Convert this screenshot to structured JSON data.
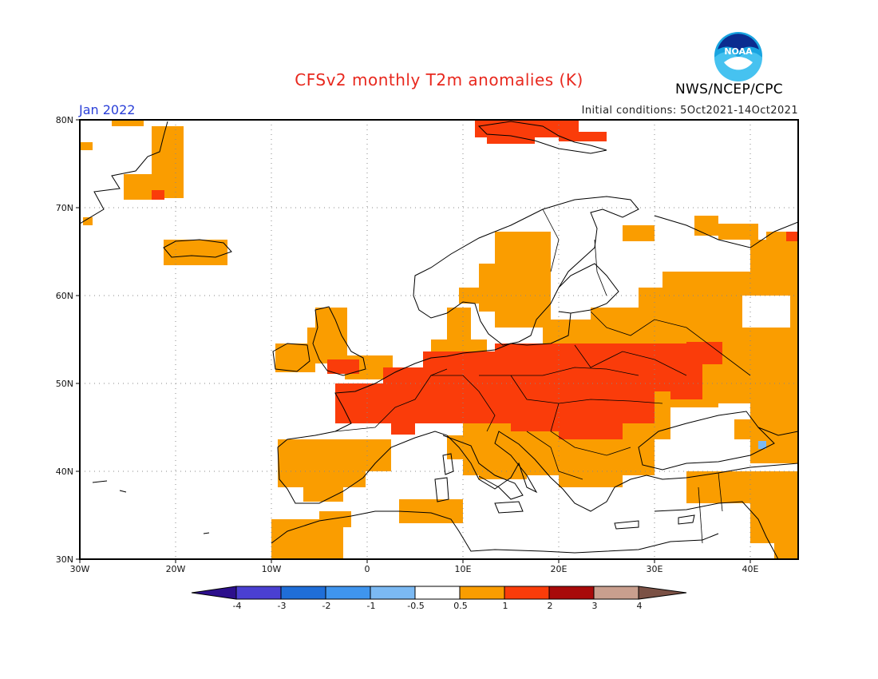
{
  "title": "CFSv2 monthly T2m anomalies (K)",
  "agency": "NWS/NCEP/CPC",
  "logo_text": "NOAA",
  "month": "Jan 2022",
  "initial_conditions": "Initial conditions: 5Oct2021-14Oct2021",
  "lat_labels": [
    "80N",
    "70N",
    "60N",
    "50N",
    "40N",
    "30N"
  ],
  "lon_labels": [
    "30W",
    "20W",
    "10W",
    "0",
    "10E",
    "20E",
    "30E",
    "40E"
  ],
  "colorbar": {
    "labels": [
      "-4",
      "-3",
      "-2",
      "-1",
      "-0.5",
      "0.5",
      "1",
      "2",
      "3",
      "4"
    ],
    "colors": [
      "#2c0f8c",
      "#4a3fd1",
      "#1f6ed8",
      "#3f95ee",
      "#7bb9f3",
      "#ffffff",
      "#fa9d00",
      "#fa3c0a",
      "#a80a0a",
      "#c99f8e",
      "#7b5145"
    ]
  },
  "colors": {
    "warm1": "#fa9d00",
    "warm2": "#fa3c0a",
    "cool": "#7bb9f3"
  }
}
